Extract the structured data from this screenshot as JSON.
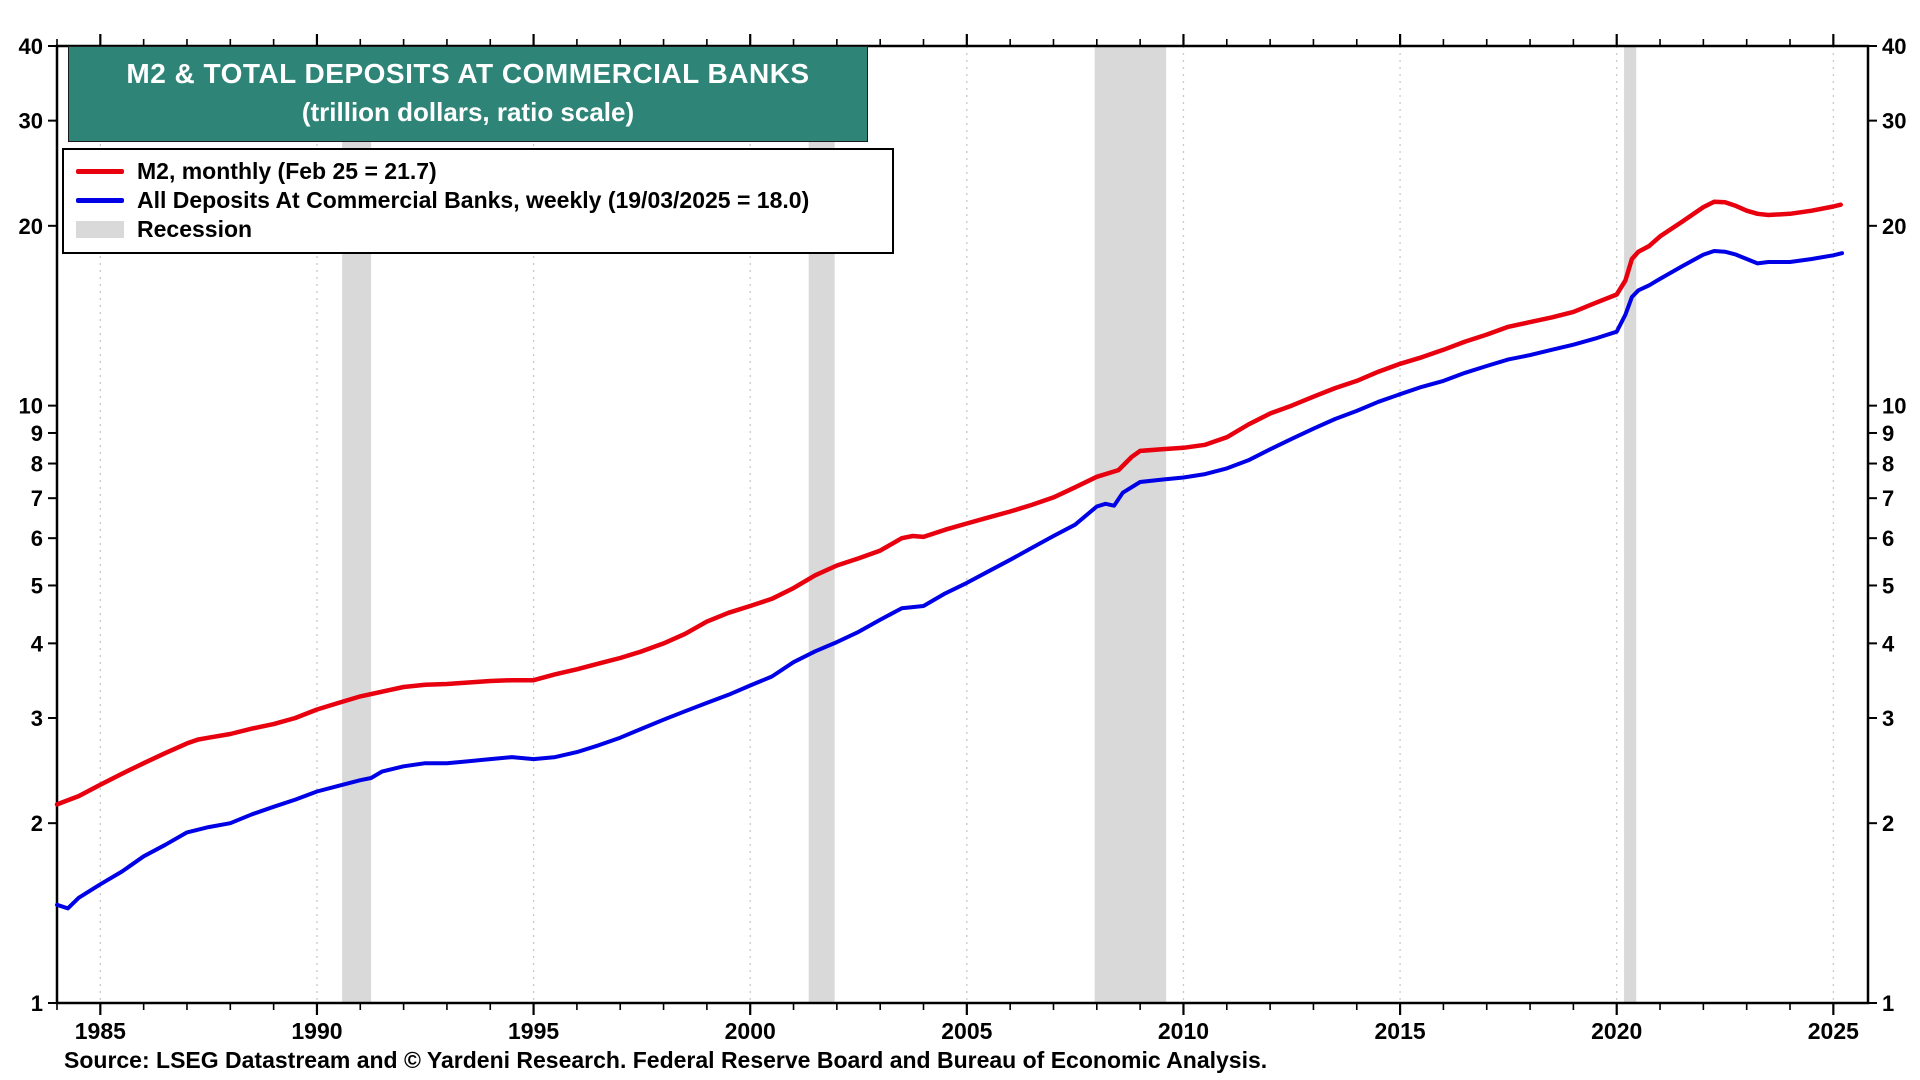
{
  "title": {
    "line1": "M2 & TOTAL DEPOSITS AT COMMERCIAL BANKS",
    "line2": "(trillion dollars, ratio scale)"
  },
  "legend": {
    "items": [
      {
        "label": "M2, monthly (Feb 25 = 21.7)",
        "color": "#e8000f",
        "type": "line"
      },
      {
        "label": "All Deposits At Commercial Banks, weekly (19/03/2025 = 18.0)",
        "color": "#0000e6",
        "type": "line"
      },
      {
        "label": "Recession",
        "color": "#d9d9d9",
        "type": "box"
      }
    ]
  },
  "source": "Source: LSEG Datastream and © Yardeni Research. Federal Reserve Board and Bureau of Economic Analysis.",
  "colors": {
    "title_bg": "#2e8577",
    "recession": "#d9d9d9",
    "gridline": "#c9c9c9",
    "axis": "#000000",
    "m2": "#e8000f",
    "deposits": "#0000e6"
  },
  "chart_data": {
    "type": "line",
    "title": "M2 & TOTAL DEPOSITS AT COMMERCIAL BANKS (trillion dollars, ratio scale)",
    "xlabel": "",
    "ylabel": "trillion dollars",
    "y_scale": "log",
    "ylim": [
      1,
      40
    ],
    "xlim": [
      1984,
      2025.8
    ],
    "y_ticks": [
      1,
      2,
      3,
      4,
      5,
      6,
      7,
      8,
      9,
      10,
      20,
      30,
      40
    ],
    "x_ticks": [
      1985,
      1990,
      1995,
      2000,
      2005,
      2010,
      2015,
      2020,
      2025
    ],
    "grid": "vertical-dotted",
    "legend_position": "top-left",
    "recessions": [
      [
        1990.58,
        1991.25
      ],
      [
        2001.35,
        2001.95
      ],
      [
        2007.95,
        2009.6
      ],
      [
        2020.17,
        2020.45
      ]
    ],
    "series": [
      {
        "name": "M2, monthly",
        "color": "#e8000f",
        "points": [
          [
            1984,
            2.15
          ],
          [
            1984.5,
            2.22
          ],
          [
            1985,
            2.32
          ],
          [
            1985.5,
            2.42
          ],
          [
            1986,
            2.52
          ],
          [
            1986.5,
            2.62
          ],
          [
            1987,
            2.72
          ],
          [
            1987.25,
            2.76
          ],
          [
            1987.5,
            2.78
          ],
          [
            1988,
            2.82
          ],
          [
            1988.5,
            2.88
          ],
          [
            1989,
            2.93
          ],
          [
            1989.5,
            3.0
          ],
          [
            1990,
            3.1
          ],
          [
            1990.5,
            3.18
          ],
          [
            1991,
            3.26
          ],
          [
            1991.5,
            3.32
          ],
          [
            1992,
            3.38
          ],
          [
            1992.5,
            3.41
          ],
          [
            1993,
            3.42
          ],
          [
            1993.5,
            3.44
          ],
          [
            1994,
            3.46
          ],
          [
            1994.5,
            3.47
          ],
          [
            1995,
            3.47
          ],
          [
            1995.5,
            3.55
          ],
          [
            1996,
            3.62
          ],
          [
            1996.5,
            3.7
          ],
          [
            1997,
            3.78
          ],
          [
            1997.5,
            3.88
          ],
          [
            1998,
            4.0
          ],
          [
            1998.5,
            4.15
          ],
          [
            1999,
            4.35
          ],
          [
            1999.5,
            4.5
          ],
          [
            2000,
            4.62
          ],
          [
            2000.5,
            4.75
          ],
          [
            2001,
            4.95
          ],
          [
            2001.5,
            5.2
          ],
          [
            2002,
            5.4
          ],
          [
            2002.5,
            5.55
          ],
          [
            2003,
            5.72
          ],
          [
            2003.5,
            6.0
          ],
          [
            2003.75,
            6.05
          ],
          [
            2004,
            6.03
          ],
          [
            2004.5,
            6.2
          ],
          [
            2005,
            6.35
          ],
          [
            2005.5,
            6.5
          ],
          [
            2006,
            6.65
          ],
          [
            2006.5,
            6.82
          ],
          [
            2007,
            7.02
          ],
          [
            2007.5,
            7.3
          ],
          [
            2008,
            7.6
          ],
          [
            2008.5,
            7.8
          ],
          [
            2008.8,
            8.2
          ],
          [
            2009,
            8.4
          ],
          [
            2009.5,
            8.45
          ],
          [
            2010,
            8.5
          ],
          [
            2010.5,
            8.6
          ],
          [
            2011,
            8.85
          ],
          [
            2011.5,
            9.3
          ],
          [
            2012,
            9.7
          ],
          [
            2012.5,
            10.0
          ],
          [
            2013,
            10.35
          ],
          [
            2013.5,
            10.7
          ],
          [
            2014,
            11.0
          ],
          [
            2014.5,
            11.4
          ],
          [
            2015,
            11.75
          ],
          [
            2015.5,
            12.05
          ],
          [
            2016,
            12.4
          ],
          [
            2016.5,
            12.8
          ],
          [
            2017,
            13.15
          ],
          [
            2017.5,
            13.55
          ],
          [
            2018,
            13.8
          ],
          [
            2018.5,
            14.05
          ],
          [
            2019,
            14.35
          ],
          [
            2019.5,
            14.85
          ],
          [
            2020,
            15.35
          ],
          [
            2020.2,
            16.2
          ],
          [
            2020.35,
            17.6
          ],
          [
            2020.5,
            18.1
          ],
          [
            2020.75,
            18.5
          ],
          [
            2021,
            19.2
          ],
          [
            2021.5,
            20.3
          ],
          [
            2022,
            21.5
          ],
          [
            2022.25,
            21.95
          ],
          [
            2022.5,
            21.9
          ],
          [
            2022.75,
            21.6
          ],
          [
            2023,
            21.2
          ],
          [
            2023.25,
            20.95
          ],
          [
            2023.5,
            20.85
          ],
          [
            2024,
            20.95
          ],
          [
            2024.5,
            21.2
          ],
          [
            2025,
            21.55
          ],
          [
            2025.17,
            21.7
          ]
        ]
      },
      {
        "name": "All Deposits At Commercial Banks, weekly",
        "color": "#0000e6",
        "points": [
          [
            1984,
            1.46
          ],
          [
            1984.25,
            1.44
          ],
          [
            1984.5,
            1.5
          ],
          [
            1985,
            1.58
          ],
          [
            1985.5,
            1.66
          ],
          [
            1986,
            1.76
          ],
          [
            1986.5,
            1.84
          ],
          [
            1987,
            1.93
          ],
          [
            1987.5,
            1.97
          ],
          [
            1988,
            2.0
          ],
          [
            1988.5,
            2.07
          ],
          [
            1989,
            2.13
          ],
          [
            1989.5,
            2.19
          ],
          [
            1990,
            2.26
          ],
          [
            1990.5,
            2.31
          ],
          [
            1991,
            2.36
          ],
          [
            1991.25,
            2.38
          ],
          [
            1991.5,
            2.44
          ],
          [
            1992,
            2.49
          ],
          [
            1992.5,
            2.52
          ],
          [
            1993,
            2.52
          ],
          [
            1993.5,
            2.54
          ],
          [
            1994,
            2.56
          ],
          [
            1994.5,
            2.58
          ],
          [
            1995,
            2.56
          ],
          [
            1995.5,
            2.58
          ],
          [
            1996,
            2.63
          ],
          [
            1996.5,
            2.7
          ],
          [
            1997,
            2.78
          ],
          [
            1997.5,
            2.88
          ],
          [
            1998,
            2.98
          ],
          [
            1998.5,
            3.08
          ],
          [
            1999,
            3.18
          ],
          [
            1999.5,
            3.28
          ],
          [
            2000,
            3.4
          ],
          [
            2000.5,
            3.52
          ],
          [
            2001,
            3.72
          ],
          [
            2001.5,
            3.88
          ],
          [
            2002,
            4.02
          ],
          [
            2002.5,
            4.18
          ],
          [
            2003,
            4.38
          ],
          [
            2003.5,
            4.58
          ],
          [
            2004,
            4.62
          ],
          [
            2004.5,
            4.85
          ],
          [
            2005,
            5.05
          ],
          [
            2005.5,
            5.28
          ],
          [
            2006,
            5.52
          ],
          [
            2006.5,
            5.78
          ],
          [
            2007,
            6.05
          ],
          [
            2007.5,
            6.32
          ],
          [
            2008,
            6.78
          ],
          [
            2008.2,
            6.85
          ],
          [
            2008.4,
            6.8
          ],
          [
            2008.6,
            7.15
          ],
          [
            2009,
            7.45
          ],
          [
            2009.5,
            7.52
          ],
          [
            2010,
            7.58
          ],
          [
            2010.5,
            7.68
          ],
          [
            2011,
            7.85
          ],
          [
            2011.5,
            8.1
          ],
          [
            2012,
            8.45
          ],
          [
            2012.5,
            8.8
          ],
          [
            2013,
            9.15
          ],
          [
            2013.5,
            9.5
          ],
          [
            2014,
            9.8
          ],
          [
            2014.5,
            10.15
          ],
          [
            2015,
            10.45
          ],
          [
            2015.5,
            10.75
          ],
          [
            2016,
            11.0
          ],
          [
            2016.5,
            11.35
          ],
          [
            2017,
            11.65
          ],
          [
            2017.5,
            11.95
          ],
          [
            2018,
            12.15
          ],
          [
            2018.5,
            12.4
          ],
          [
            2019,
            12.65
          ],
          [
            2019.5,
            12.95
          ],
          [
            2020,
            13.3
          ],
          [
            2020.2,
            14.2
          ],
          [
            2020.35,
            15.2
          ],
          [
            2020.5,
            15.6
          ],
          [
            2020.75,
            15.9
          ],
          [
            2021,
            16.3
          ],
          [
            2021.5,
            17.1
          ],
          [
            2022,
            17.9
          ],
          [
            2022.25,
            18.15
          ],
          [
            2022.5,
            18.1
          ],
          [
            2022.75,
            17.9
          ],
          [
            2023,
            17.6
          ],
          [
            2023.25,
            17.3
          ],
          [
            2023.5,
            17.4
          ],
          [
            2024,
            17.4
          ],
          [
            2024.5,
            17.6
          ],
          [
            2025,
            17.85
          ],
          [
            2025.2,
            18.0
          ]
        ]
      }
    ]
  }
}
